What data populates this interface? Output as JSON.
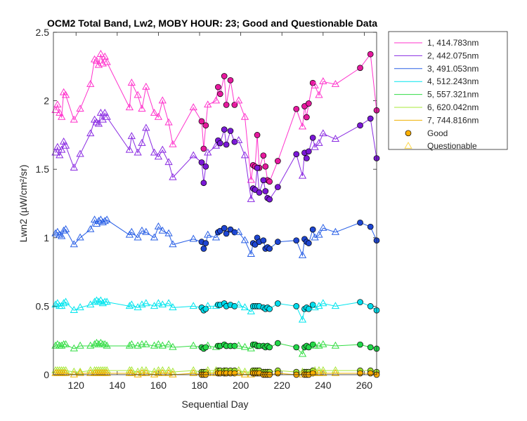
{
  "chart_data": {
    "type": "line",
    "title": "OCM2 Total Band, Lw2, MOBY HOUR: 23;  Good and Questionable Data",
    "xlabel": "Sequential Day",
    "ylabel": "Lwn2 (µW/cm²/sr)",
    "xlim": [
      109,
      266
    ],
    "ylim": [
      0,
      2.5
    ],
    "xticks": [
      120,
      140,
      160,
      180,
      200,
      220,
      240,
      260
    ],
    "xtick_labels": [
      "120",
      "140",
      "160",
      "180",
      "200",
      "220",
      "240",
      "260"
    ],
    "yticks": [
      0,
      0.5,
      1,
      1.5,
      2,
      2.5
    ],
    "ytick_labels": [
      "0",
      "0.5",
      "1",
      "1.5",
      "2",
      "2.5"
    ],
    "legend_position": "outside-top-right",
    "legend_markers": [
      {
        "label": "Good",
        "marker": "circle",
        "color": "#ffb000"
      },
      {
        "label": "Questionable",
        "marker": "triangle",
        "color": "#ffd84a"
      }
    ],
    "days": [
      110,
      111,
      112,
      113,
      114,
      115,
      119,
      122,
      127,
      129,
      130,
      131,
      132,
      133,
      134,
      135,
      146,
      147,
      150,
      152,
      154,
      158,
      160,
      162,
      165,
      167,
      177,
      181,
      182,
      183,
      184,
      188,
      189,
      190,
      192,
      193,
      195,
      197,
      199,
      202,
      205,
      206,
      207,
      208,
      209,
      211,
      212,
      213,
      214,
      218,
      227,
      230,
      231,
      232,
      233,
      235,
      236,
      238,
      240,
      246,
      258,
      263,
      266
    ],
    "quality": [
      "Q",
      "Q",
      "Q",
      "Q",
      "Q",
      "Q",
      "Q",
      "Q",
      "Q",
      "Q",
      "Q",
      "Q",
      "Q",
      "Q",
      "Q",
      "Q",
      "Q",
      "Q",
      "Q",
      "Q",
      "Q",
      "Q",
      "Q",
      "Q",
      "Q",
      "Q",
      "Q",
      "G",
      "G",
      "G",
      "Q",
      "Q",
      "G",
      "G",
      "G",
      "G",
      "G",
      "G",
      "Q",
      "Q",
      "Q",
      "G",
      "G",
      "G",
      "G",
      "G",
      "G",
      "G",
      "G",
      "G",
      "G",
      "Q",
      "G",
      "G",
      "G",
      "G",
      "Q",
      "Q",
      "Q",
      "Q",
      "G",
      "G",
      "G"
    ],
    "series": [
      {
        "name": "1, 414.783nm",
        "color": "#ff33cc",
        "fill": "#e6199e",
        "values": [
          1.93,
          1.97,
          1.91,
          1.88,
          2.06,
          2.04,
          1.86,
          1.94,
          2.12,
          2.3,
          2.29,
          2.26,
          2.34,
          2.27,
          2.32,
          2.28,
          1.95,
          2.13,
          2.04,
          1.94,
          2.1,
          1.91,
          1.88,
          2.0,
          1.84,
          1.68,
          1.95,
          1.85,
          1.65,
          1.82,
          1.97,
          2.0,
          2.1,
          2.05,
          2.18,
          1.97,
          2.15,
          1.97,
          2.0,
          1.88,
          1.42,
          1.53,
          1.52,
          1.75,
          1.51,
          1.6,
          1.52,
          1.42,
          1.41,
          1.56,
          1.94,
          1.81,
          1.96,
          1.88,
          1.98,
          2.13,
          2.11,
          2.04,
          2.14,
          2.12,
          2.24,
          2.34,
          1.93
        ]
      },
      {
        "name": "2, 442.075nm",
        "color": "#8a2be2",
        "fill": "#7a18d6",
        "values": [
          1.62,
          1.66,
          1.6,
          1.64,
          1.7,
          1.67,
          1.51,
          1.61,
          1.76,
          1.86,
          1.84,
          1.83,
          1.91,
          1.86,
          1.91,
          1.88,
          1.64,
          1.74,
          1.62,
          1.69,
          1.8,
          1.62,
          1.59,
          1.64,
          1.55,
          1.44,
          1.6,
          1.55,
          1.4,
          1.52,
          1.62,
          1.67,
          1.71,
          1.69,
          1.79,
          1.68,
          1.78,
          1.7,
          1.71,
          1.6,
          1.28,
          1.36,
          1.35,
          1.51,
          1.33,
          1.42,
          1.34,
          1.29,
          1.28,
          1.37,
          1.61,
          1.45,
          1.62,
          1.58,
          1.63,
          1.73,
          1.66,
          1.69,
          1.76,
          1.72,
          1.82,
          1.87,
          1.58
        ]
      },
      {
        "name": "3, 491.053nm",
        "color": "#2a60e6",
        "fill": "#1e46d2",
        "values": [
          1.03,
          1.04,
          1.02,
          1.01,
          1.05,
          1.06,
          0.95,
          1.0,
          1.06,
          1.13,
          1.1,
          1.12,
          1.13,
          1.11,
          1.12,
          1.13,
          1.02,
          1.04,
          1.0,
          1.05,
          1.04,
          1.0,
          1.08,
          1.05,
          1.03,
          0.95,
          0.99,
          0.97,
          0.92,
          0.96,
          1.02,
          1.0,
          1.04,
          1.05,
          1.07,
          1.03,
          1.06,
          1.04,
          1.04,
          0.98,
          0.88,
          0.96,
          0.95,
          1.0,
          0.97,
          0.98,
          0.92,
          0.93,
          0.92,
          0.97,
          0.98,
          0.87,
          0.99,
          0.97,
          0.96,
          1.06,
          1.0,
          1.02,
          1.07,
          1.04,
          1.11,
          1.08,
          0.98
        ]
      },
      {
        "name": "4, 512.243nm",
        "color": "#00e5ee",
        "fill": "#00dcec",
        "values": [
          0.51,
          0.52,
          0.5,
          0.5,
          0.52,
          0.53,
          0.47,
          0.49,
          0.51,
          0.53,
          0.54,
          0.53,
          0.54,
          0.52,
          0.53,
          0.53,
          0.5,
          0.51,
          0.49,
          0.51,
          0.52,
          0.5,
          0.52,
          0.51,
          0.52,
          0.49,
          0.5,
          0.49,
          0.47,
          0.48,
          0.5,
          0.5,
          0.51,
          0.51,
          0.52,
          0.5,
          0.51,
          0.5,
          0.51,
          0.49,
          0.46,
          0.5,
          0.5,
          0.5,
          0.5,
          0.49,
          0.48,
          0.49,
          0.48,
          0.52,
          0.5,
          0.4,
          0.48,
          0.49,
          0.48,
          0.51,
          0.49,
          0.5,
          0.52,
          0.5,
          0.53,
          0.5,
          0.47
        ]
      },
      {
        "name": "5, 557.321nm",
        "color": "#33dd44",
        "fill": "#22d84a",
        "values": [
          0.21,
          0.22,
          0.21,
          0.21,
          0.22,
          0.22,
          0.19,
          0.21,
          0.21,
          0.22,
          0.23,
          0.22,
          0.23,
          0.22,
          0.22,
          0.21,
          0.21,
          0.22,
          0.21,
          0.22,
          0.22,
          0.21,
          0.22,
          0.21,
          0.22,
          0.2,
          0.21,
          0.2,
          0.19,
          0.2,
          0.21,
          0.2,
          0.21,
          0.21,
          0.22,
          0.21,
          0.21,
          0.21,
          0.21,
          0.2,
          0.19,
          0.22,
          0.22,
          0.21,
          0.21,
          0.21,
          0.2,
          0.21,
          0.2,
          0.23,
          0.2,
          0.15,
          0.2,
          0.21,
          0.2,
          0.22,
          0.21,
          0.21,
          0.22,
          0.21,
          0.22,
          0.2,
          0.19
        ]
      },
      {
        "name": "6, 620.042nm",
        "color": "#a8e83a",
        "fill": "#a0e030",
        "values": [
          0.03,
          0.03,
          0.03,
          0.03,
          0.03,
          0.03,
          0.02,
          0.02,
          0.03,
          0.03,
          0.03,
          0.03,
          0.03,
          0.03,
          0.03,
          0.03,
          0.03,
          0.03,
          0.02,
          0.03,
          0.03,
          0.02,
          0.03,
          0.03,
          0.03,
          0.02,
          0.03,
          0.02,
          0.02,
          0.02,
          0.03,
          0.03,
          0.03,
          0.03,
          0.03,
          0.03,
          0.03,
          0.03,
          0.03,
          0.02,
          0.02,
          0.03,
          0.03,
          0.03,
          0.03,
          0.02,
          0.02,
          0.02,
          0.02,
          0.03,
          0.02,
          0.02,
          0.02,
          0.02,
          0.02,
          0.03,
          0.03,
          0.03,
          0.03,
          0.03,
          0.03,
          0.03,
          0.02
        ]
      },
      {
        "name": "7, 744.816nm",
        "color": "#f0b000",
        "fill": "#ffb000",
        "values": [
          0.01,
          0.01,
          0.01,
          0.01,
          0.01,
          0.01,
          0.0,
          0.01,
          0.01,
          0.01,
          0.01,
          0.01,
          0.01,
          0.01,
          0.01,
          0.01,
          0.01,
          0.01,
          0.0,
          0.01,
          0.01,
          0.0,
          0.01,
          0.01,
          0.01,
          0.0,
          0.01,
          0.0,
          0.0,
          0.0,
          0.01,
          0.01,
          0.01,
          0.01,
          0.01,
          0.01,
          0.01,
          0.01,
          0.01,
          0.0,
          0.0,
          0.01,
          0.01,
          0.01,
          0.01,
          0.0,
          0.0,
          0.0,
          0.0,
          0.01,
          0.0,
          0.0,
          0.0,
          0.0,
          0.0,
          0.01,
          0.01,
          0.01,
          0.01,
          0.01,
          0.01,
          0.01,
          0.0
        ]
      }
    ]
  }
}
